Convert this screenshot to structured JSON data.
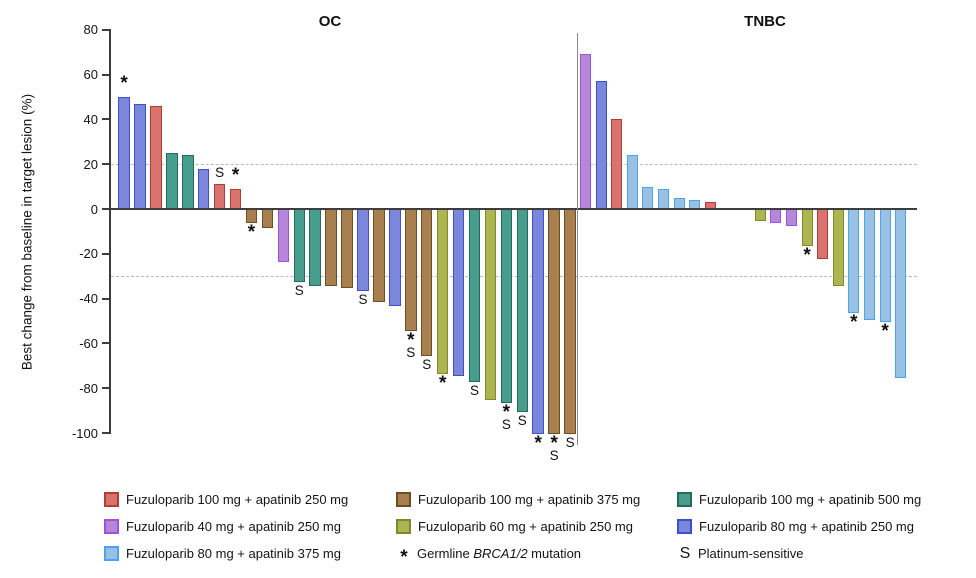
{
  "chart_data": {
    "type": "bar",
    "subtype": "waterfall",
    "title": "",
    "ylabel": "Best change from baseline in target lesion (%)",
    "ylim": [
      -100,
      80
    ],
    "ytick_step": 20,
    "reference_lines": [
      20,
      -30
    ],
    "grid": "off",
    "marker_meanings": {
      "*": "Germline BRCA1/2 mutation",
      "S": "Platinum-sensitive"
    },
    "groups": {
      "f100a250": {
        "label": "Fuzuloparib 100 mg + apatinib 250 mg",
        "fill": "#D9736D",
        "border": "#B03E36"
      },
      "f100a375": {
        "label": "Fuzuloparib 100 mg + apatinib 375 mg",
        "fill": "#A8804F",
        "border": "#6E4E27"
      },
      "f100a500": {
        "label": "Fuzuloparib 100 mg + apatinib 500 mg",
        "fill": "#489E8E",
        "border": "#27695D"
      },
      "f40a250": {
        "label": "Fuzuloparib 40 mg + apatinib 250 mg",
        "fill": "#B687D8",
        "border": "#9D52DE"
      },
      "f60a250": {
        "label": "Fuzuloparib 60 mg + apatinib 250 mg",
        "fill": "#ADB551",
        "border": "#7D8A2E"
      },
      "f80a250": {
        "label": "Fuzuloparib 80 mg + apatinib 250 mg",
        "fill": "#7B87DA",
        "border": "#4050C8"
      },
      "f80a375": {
        "label": "Fuzuloparib 80 mg + apatinib 375 mg",
        "fill": "#99C1E4",
        "border": "#4CA2EE"
      }
    },
    "panels": [
      {
        "title": "OC",
        "bars": [
          {
            "value": 50,
            "group": "f80a250",
            "markers": [
              "*"
            ]
          },
          {
            "value": 47,
            "group": "f80a250",
            "markers": []
          },
          {
            "value": 46,
            "group": "f100a250",
            "markers": []
          },
          {
            "value": 25,
            "group": "f100a500",
            "markers": []
          },
          {
            "value": 24,
            "group": "f100a500",
            "markers": []
          },
          {
            "value": 18,
            "group": "f80a250",
            "markers": []
          },
          {
            "value": 11,
            "group": "f100a250",
            "markers": [
              "S"
            ]
          },
          {
            "value": 9,
            "group": "f100a250",
            "markers": [
              "*"
            ]
          },
          {
            "value": -6,
            "group": "f100a375",
            "markers": [
              "*"
            ]
          },
          {
            "value": -8,
            "group": "f100a375",
            "markers": []
          },
          {
            "value": -23,
            "group": "f40a250",
            "markers": []
          },
          {
            "value": -32,
            "group": "f100a500",
            "markers": [
              "S"
            ]
          },
          {
            "value": -34,
            "group": "f100a500",
            "markers": []
          },
          {
            "value": -34,
            "group": "f100a375",
            "markers": []
          },
          {
            "value": -35,
            "group": "f100a375",
            "markers": []
          },
          {
            "value": -36,
            "group": "f80a250",
            "markers": [
              "S"
            ]
          },
          {
            "value": -41,
            "group": "f100a375",
            "markers": []
          },
          {
            "value": -43,
            "group": "f80a250",
            "markers": []
          },
          {
            "value": -54,
            "group": "f100a375",
            "markers": [
              "*",
              "S"
            ]
          },
          {
            "value": -65,
            "group": "f100a375",
            "markers": [
              "S"
            ]
          },
          {
            "value": -73,
            "group": "f60a250",
            "markers": [
              "*"
            ]
          },
          {
            "value": -74,
            "group": "f80a250",
            "markers": []
          },
          {
            "value": -77,
            "group": "f100a500",
            "markers": [
              "S"
            ]
          },
          {
            "value": -85,
            "group": "f60a250",
            "markers": []
          },
          {
            "value": -86,
            "group": "f100a500",
            "markers": [
              "*",
              "S"
            ]
          },
          {
            "value": -90,
            "group": "f100a500",
            "markers": [
              "S"
            ]
          },
          {
            "value": -100,
            "group": "f80a250",
            "markers": [
              "*"
            ]
          },
          {
            "value": -100,
            "group": "f100a375",
            "markers": [
              "*",
              "S"
            ]
          },
          {
            "value": -100,
            "group": "f100a375",
            "markers": [
              "S"
            ]
          }
        ]
      },
      {
        "title": "TNBC",
        "bars": [
          {
            "value": 69,
            "group": "f40a250",
            "markers": []
          },
          {
            "value": 57,
            "group": "f80a250",
            "markers": []
          },
          {
            "value": 40,
            "group": "f100a250",
            "markers": []
          },
          {
            "value": 24,
            "group": "f80a375",
            "markers": []
          },
          {
            "value": 10,
            "group": "f80a375",
            "markers": []
          },
          {
            "value": 9,
            "group": "f80a375",
            "markers": []
          },
          {
            "value": 5,
            "group": "f80a375",
            "markers": []
          },
          {
            "value": 4,
            "group": "f80a375",
            "markers": []
          },
          {
            "value": 3,
            "group": "f100a250",
            "markers": []
          },
          {
            "value": -5,
            "group": "f60a250",
            "markers": [],
            "gap_before": true
          },
          {
            "value": -6,
            "group": "f40a250",
            "markers": []
          },
          {
            "value": -7,
            "group": "f40a250",
            "markers": []
          },
          {
            "value": -16,
            "group": "f60a250",
            "markers": [
              "*"
            ]
          },
          {
            "value": -22,
            "group": "f100a250",
            "markers": []
          },
          {
            "value": -34,
            "group": "f60a250",
            "markers": []
          },
          {
            "value": -46,
            "group": "f80a375",
            "markers": [
              "*"
            ]
          },
          {
            "value": -49,
            "group": "f80a375",
            "markers": []
          },
          {
            "value": -50,
            "group": "f80a375",
            "markers": [
              "*"
            ]
          },
          {
            "value": -75,
            "group": "f80a375",
            "markers": []
          }
        ]
      }
    ]
  },
  "legend": {
    "rows": [
      [
        {
          "type": "swatch",
          "group": "f100a250"
        },
        {
          "type": "swatch",
          "group": "f100a375"
        },
        {
          "type": "swatch",
          "group": "f100a500"
        }
      ],
      [
        {
          "type": "swatch",
          "group": "f40a250"
        },
        {
          "type": "swatch",
          "group": "f60a250"
        },
        {
          "type": "swatch",
          "group": "f80a250"
        }
      ],
      [
        {
          "type": "swatch",
          "group": "f80a375"
        },
        {
          "type": "symbol",
          "symbol": "*",
          "label_prefix": "Germline ",
          "label_italic": "BRCA1/2",
          "label_suffix": " mutation"
        },
        {
          "type": "symbol",
          "symbol": "S",
          "label": "Platinum-sensitive"
        }
      ]
    ]
  }
}
